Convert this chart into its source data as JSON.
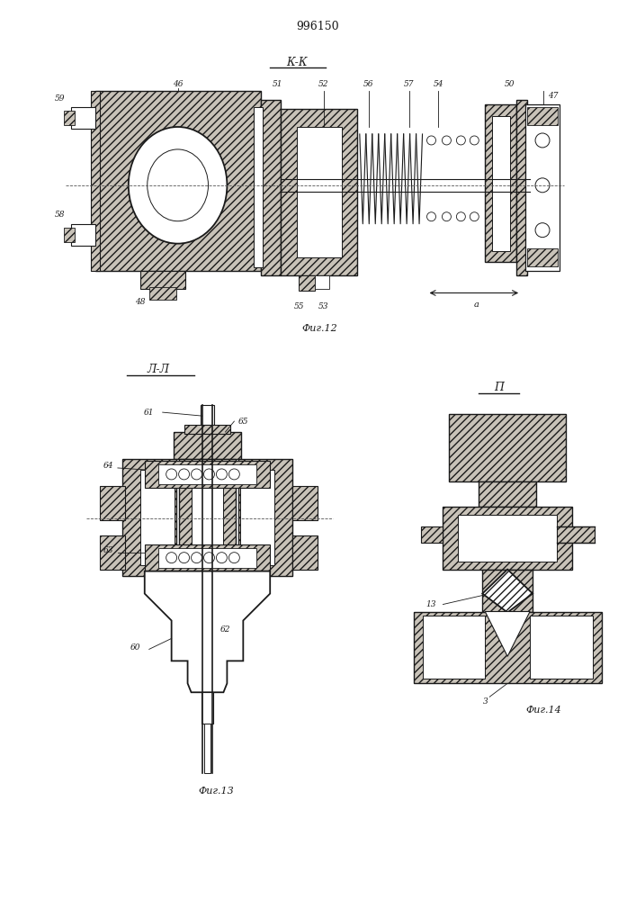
{
  "title": "996150",
  "fig12_label": "К-К",
  "fig13_label": "Л-Л",
  "fig12_caption": "Фиг.12",
  "fig13_caption": "Фиг.13",
  "fig14_caption": "Фиг.14",
  "fig14_label": "П",
  "line_color": "#1a1a1a",
  "hatch_fc": "#c8c2b8"
}
